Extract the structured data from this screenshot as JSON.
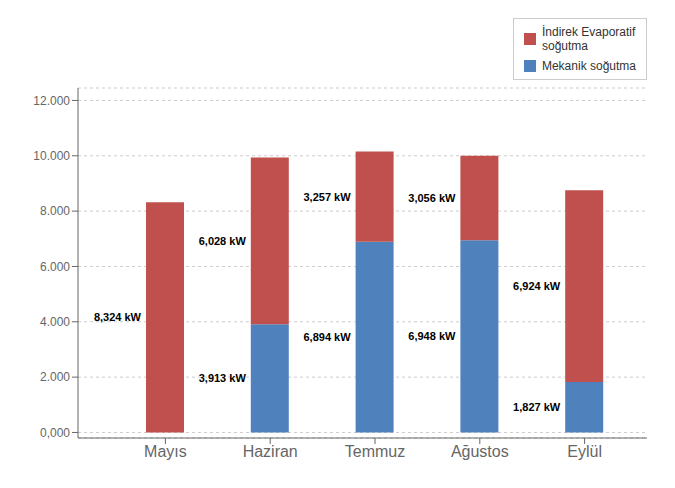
{
  "chart_data": {
    "type": "bar",
    "categories": [
      "Mayıs",
      "Haziran",
      "Temmuz",
      "Ağustos",
      "Eylül"
    ],
    "series": [
      {
        "name": "Mekanik soğutma",
        "color": "#4F81BD",
        "values": [
          0,
          3913,
          6894,
          6948,
          1827
        ],
        "value_labels": [
          null,
          "3,913 kW",
          "6,894 kW",
          "6,948 kW",
          "1,827 kW"
        ]
      },
      {
        "name": "İndirek Evaporatif\nsoğutma",
        "color": "#C0504D",
        "values": [
          8324,
          6028,
          3257,
          3056,
          6924
        ],
        "value_labels": [
          "8,324 kW",
          "6,028 kW",
          "3,257 kW",
          "3,056 kW",
          "6,924 kW"
        ]
      }
    ],
    "stacked": true,
    "data_labels": true,
    "ylim": [
      -200,
      12450
    ],
    "yticks": [
      {
        "value": 0,
        "label": "0,000"
      },
      {
        "value": 2000,
        "label": "2.000"
      },
      {
        "value": 4000,
        "label": "4.000"
      },
      {
        "value": 6000,
        "label": "6.000"
      },
      {
        "value": 8000,
        "label": "8.000"
      },
      {
        "value": 10000,
        "label": "10.000"
      },
      {
        "value": 12000,
        "label": "12.000"
      }
    ],
    "grid": true,
    "legend": "upper right"
  }
}
